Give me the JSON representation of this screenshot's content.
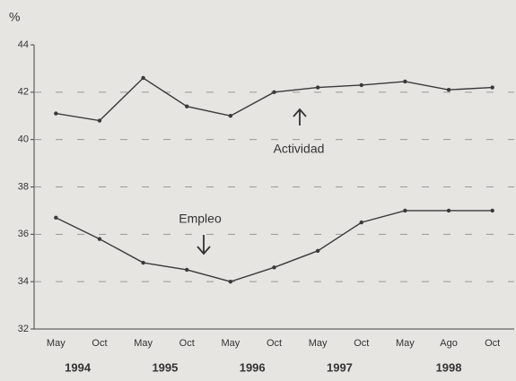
{
  "chart_data": {
    "type": "line",
    "y_axis_label": "%",
    "categories": [
      "May",
      "Oct",
      "May",
      "Oct",
      "May",
      "Oct",
      "May",
      "Oct",
      "May",
      "Ago",
      "Oct"
    ],
    "year_labels": [
      "1994",
      "1995",
      "1996",
      "1997",
      "1998"
    ],
    "series": [
      {
        "name": "Actividad",
        "color": "#3a3a3a",
        "values": [
          41.1,
          40.8,
          42.6,
          41.4,
          41.0,
          42.0,
          42.2,
          42.3,
          42.45,
          42.1,
          42.2
        ]
      },
      {
        "name": "Empleo",
        "color": "#3a3a3a",
        "values": [
          36.7,
          35.8,
          34.8,
          34.5,
          34.0,
          34.6,
          35.3,
          36.5,
          37.0,
          37.0,
          37.0
        ]
      }
    ],
    "ylim": [
      32,
      44
    ],
    "yticks": [
      32,
      34,
      36,
      38,
      40,
      42,
      44
    ],
    "grid": true
  }
}
